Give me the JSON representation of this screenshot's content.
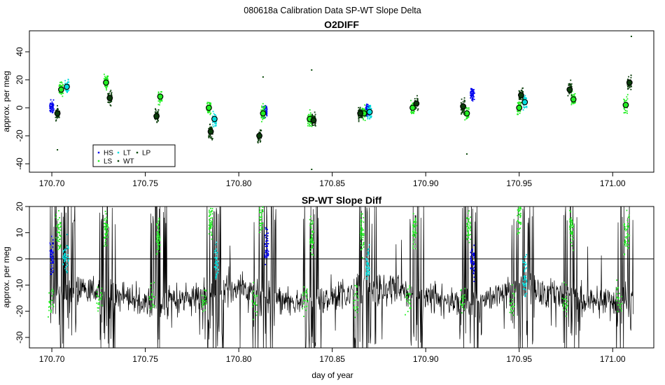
{
  "suptitle": "080618a   Calibration Data SP-WT Slope Delta",
  "xlabel": "day of year",
  "colors": {
    "HS": "#0000ee",
    "LS": "#22ee22",
    "LT": "#00dddd",
    "WT": "#0a3d0a",
    "LP": "#0a4a0a",
    "frame": "#000000"
  },
  "chart_data": [
    {
      "type": "scatter",
      "title": "O2DIFF",
      "ylabel": "approx. per meg",
      "xlabel": "",
      "xlim": [
        170.688,
        171.022
      ],
      "ylim": [
        -46,
        55
      ],
      "xticks": [
        170.7,
        170.75,
        170.8,
        170.85,
        170.9,
        170.95,
        171.0
      ],
      "xtick_labels": [
        "170.70",
        "170.75",
        "170.80",
        "170.85",
        "170.90",
        "170.95",
        "171.00"
      ],
      "yticks": [
        -40,
        -20,
        0,
        20,
        40
      ],
      "ytick_labels": [
        "-40",
        "-20",
        "0",
        "20",
        "40"
      ],
      "legend": {
        "position": "bottom-left",
        "entries": [
          "HS",
          "LS",
          "LT",
          "WT",
          "LP"
        ]
      },
      "series": [
        {
          "name": "HS",
          "color": "#0000ee",
          "points": [
            [
              170.7,
              1
            ],
            [
              170.814,
              -2
            ],
            [
              170.869,
              -2
            ],
            [
              170.925,
              9
            ]
          ],
          "mean_marker": false
        },
        {
          "name": "LS",
          "color": "#22ee22",
          "points": [
            [
              170.705,
              13
            ],
            [
              170.729,
              18
            ],
            [
              170.758,
              8
            ],
            [
              170.784,
              0
            ],
            [
              170.813,
              -4
            ],
            [
              170.838,
              -8
            ],
            [
              170.867,
              -4
            ],
            [
              170.893,
              0
            ],
            [
              170.922,
              -4
            ],
            [
              170.95,
              0
            ],
            [
              170.979,
              6
            ],
            [
              171.007,
              2
            ]
          ],
          "mean_marker": true
        },
        {
          "name": "LT",
          "color": "#00dddd",
          "points": [
            [
              170.708,
              15
            ],
            [
              170.787,
              -8
            ],
            [
              170.87,
              -3
            ],
            [
              170.953,
              4
            ]
          ],
          "mean_marker": true
        },
        {
          "name": "WT",
          "color": "#0a3d0a",
          "points": [
            [
              170.703,
              -4
            ],
            [
              170.731,
              7
            ],
            [
              170.756,
              -6
            ],
            [
              170.785,
              -17
            ],
            [
              170.811,
              -20
            ],
            [
              170.84,
              -9
            ],
            [
              170.865,
              -4
            ],
            [
              170.895,
              3
            ],
            [
              170.92,
              1
            ],
            [
              170.951,
              9
            ],
            [
              170.977,
              13
            ],
            [
              171.009,
              18
            ]
          ],
          "mean_marker": true
        },
        {
          "name": "LP",
          "color": "#0a4a0a",
          "points": [
            [
              170.703,
              -30
            ],
            [
              170.839,
              27
            ],
            [
              170.839,
              -44
            ],
            [
              171.01,
              51
            ],
            [
              170.922,
              -33
            ],
            [
              170.813,
              22
            ]
          ],
          "mean_marker": false
        }
      ]
    },
    {
      "type": "line",
      "title": "SP-WT Slope Diff",
      "ylabel": "approx. per meg",
      "xlabel": "day of year",
      "xlim": [
        170.688,
        171.022
      ],
      "ylim": [
        -34,
        20
      ],
      "xticks": [
        170.7,
        170.75,
        170.8,
        170.85,
        170.9,
        170.95,
        171.0
      ],
      "xtick_labels": [
        "170.70",
        "170.75",
        "170.80",
        "170.85",
        "170.90",
        "170.95",
        "171.00"
      ],
      "yticks": [
        -30,
        -20,
        -10,
        0,
        10,
        20
      ],
      "ytick_labels": [
        "-30",
        "-20",
        "-10",
        "0",
        "10",
        "20"
      ],
      "reference_line_y": 0,
      "baseline": {
        "name": "slope diff",
        "x_range": [
          170.699,
          171.011
        ],
        "typical_level": -14
      },
      "calibration_segments": [
        {
          "name": "HS",
          "x_range": [
            170.699,
            170.701
          ],
          "level": 0
        },
        {
          "name": "LS",
          "x_range": [
            170.702,
            170.705
          ],
          "level": 10
        },
        {
          "name": "LT",
          "x_range": [
            170.706,
            170.709
          ],
          "level": 0
        },
        {
          "name": "LS",
          "x_range": [
            170.728,
            170.73
          ],
          "level": 12
        },
        {
          "name": "LS",
          "x_range": [
            170.756,
            170.758
          ],
          "level": 8
        },
        {
          "name": "LS",
          "x_range": [
            170.784,
            170.786
          ],
          "level": 14
        },
        {
          "name": "LT",
          "x_range": [
            170.787,
            170.789
          ],
          "level": -2
        },
        {
          "name": "LS",
          "x_range": [
            170.811,
            170.813
          ],
          "level": 17
        },
        {
          "name": "HS",
          "x_range": [
            170.814,
            170.816
          ],
          "level": 4
        },
        {
          "name": "LS",
          "x_range": [
            170.838,
            170.84
          ],
          "level": 9
        },
        {
          "name": "LS",
          "x_range": [
            170.865,
            170.867
          ],
          "level": 10
        },
        {
          "name": "LT",
          "x_range": [
            170.868,
            170.87
          ],
          "level": -3
        },
        {
          "name": "LS",
          "x_range": [
            170.893,
            170.895
          ],
          "level": 12
        },
        {
          "name": "LS",
          "x_range": [
            170.922,
            170.924
          ],
          "level": 12
        },
        {
          "name": "HS",
          "x_range": [
            170.924,
            170.926
          ],
          "level": -2
        },
        {
          "name": "LS",
          "x_range": [
            170.949,
            170.951
          ],
          "level": 16
        },
        {
          "name": "LT",
          "x_range": [
            170.952,
            170.954
          ],
          "level": -8
        },
        {
          "name": "LS",
          "x_range": [
            170.977,
            170.979
          ],
          "level": 12
        },
        {
          "name": "LS",
          "x_range": [
            171.006,
            171.009
          ],
          "level": 10
        }
      ]
    }
  ]
}
